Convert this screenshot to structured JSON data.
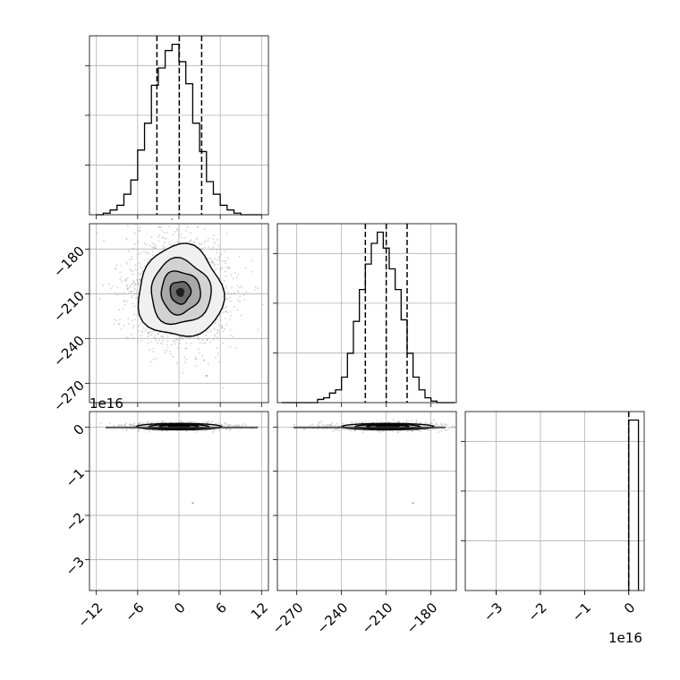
{
  "chart_data": {
    "type": "corner",
    "grid": true,
    "parameters": [
      {
        "range": [
          -13,
          13
        ],
        "ticks": [
          -12,
          -6,
          0,
          6,
          12
        ],
        "tick_labels": [
          "−12",
          "−6",
          "0",
          "6",
          "12"
        ],
        "offset_label": ""
      },
      {
        "range": [
          -283,
          -163
        ],
        "ticks": [
          -270,
          -240,
          -210,
          -180
        ],
        "tick_labels": [
          "−270",
          "−240",
          "−210",
          "−180"
        ],
        "offset_label": ""
      },
      {
        "range": [
          -3.7,
          0.35
        ],
        "ticks": [
          -3,
          -2,
          -1,
          0
        ],
        "tick_labels": [
          "−3",
          "−2",
          "−1",
          "0"
        ],
        "offset_label": "1e16"
      }
    ],
    "histograms": [
      {
        "parameter": 0,
        "bin_edges": [
          -12,
          -11,
          -10,
          -9,
          -8,
          -7,
          -6,
          -5,
          -4,
          -3,
          -2,
          -1,
          0,
          1,
          2,
          3,
          4,
          5,
          6,
          7,
          8,
          9,
          10,
          11,
          12
        ],
        "counts": [
          0,
          1,
          3,
          6,
          13,
          22,
          41,
          58,
          82,
          93,
          104,
          108,
          97,
          83,
          58,
          40,
          21,
          13,
          6,
          3,
          1,
          0,
          0,
          0
        ],
        "quantiles": [
          -3.2,
          0.05,
          3.3
        ]
      },
      {
        "parameter": 1,
        "bin_edges": [
          -280,
          -276,
          -272,
          -268,
          -264,
          -260,
          -256,
          -252,
          -248,
          -244,
          -240,
          -236,
          -232,
          -228,
          -224,
          -220,
          -216,
          -212,
          -208,
          -204,
          -200,
          -196,
          -192,
          -188,
          -184,
          -180,
          -176,
          -172,
          -168,
          -164
        ],
        "counts": [
          0,
          0,
          0,
          0,
          0,
          0,
          2,
          3,
          6,
          8,
          16,
          31,
          51,
          71,
          87,
          100,
          107,
          97,
          84,
          71,
          52,
          31,
          16,
          8,
          3,
          1,
          0,
          0,
          0
        ],
        "quantiles": [
          -224,
          -210,
          -196
        ]
      },
      {
        "parameter": 2,
        "bins": [
          {
            "from": 0.0,
            "to": 0.22,
            "count": 100
          }
        ],
        "quantiles": [
          0.0,
          0.0,
          0.0
        ]
      }
    ],
    "contour_panels": [
      {
        "x_param": 0,
        "y_param": 1,
        "center": [
          0.2,
          -209
        ],
        "sigma": [
          3.0,
          15.0
        ],
        "extra_points": [
          [
            -1,
            -160
          ],
          [
            4,
            -265
          ]
        ]
      },
      {
        "x_param": 0,
        "y_param": 2,
        "center": [
          0.0,
          0.01
        ],
        "sigma": [
          3.0,
          0.035
        ],
        "extra_points": [
          [
            -2.5,
            -0.07
          ],
          [
            2,
            -1.72
          ]
        ]
      },
      {
        "x_param": 1,
        "y_param": 2,
        "center": [
          -209,
          0.01
        ],
        "sigma": [
          15.0,
          0.035
        ],
        "extra_points": [
          [
            -231,
            -0.07
          ],
          [
            -192,
            -1.72
          ]
        ]
      }
    ]
  },
  "colors": {
    "line": "#000000",
    "grid": "#b0b0b0",
    "points": "#9a9a9a",
    "background": "#ffffff"
  }
}
